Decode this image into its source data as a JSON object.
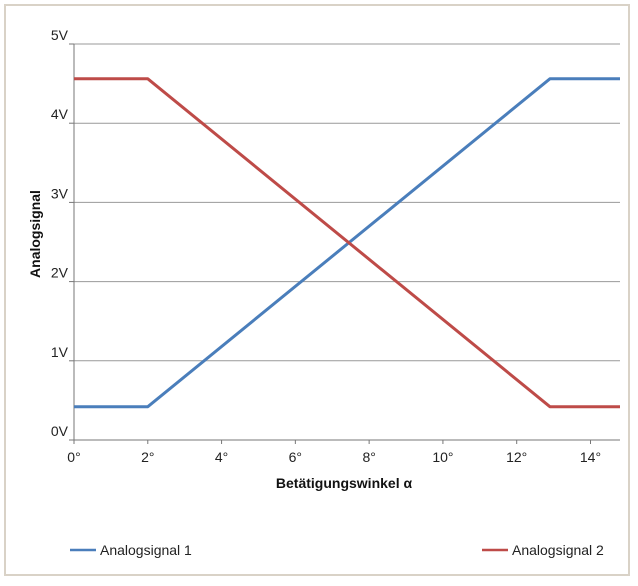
{
  "chart_data": {
    "type": "line",
    "xlabel": "Betätigungswinkel α",
    "ylabel": "Analogsignal",
    "xlim": [
      0,
      14.8
    ],
    "ylim": [
      0,
      5
    ],
    "xticks": [
      0,
      2,
      4,
      6,
      8,
      10,
      12,
      14
    ],
    "xtick_labels": [
      "0°",
      "2°",
      "4°",
      "6°",
      "8°",
      "10°",
      "12°",
      "14°"
    ],
    "yticks": [
      0,
      1,
      2,
      3,
      4,
      5
    ],
    "ytick_labels": [
      "0V",
      "1V",
      "2V",
      "3V",
      "4V",
      "5V"
    ],
    "grid": true,
    "legend_position": "bottom",
    "series": [
      {
        "name": "Analogsignal 1",
        "color": "#4a7ebb",
        "x": [
          0,
          2,
          12.9,
          14.8
        ],
        "y": [
          0.42,
          0.42,
          4.56,
          4.56
        ]
      },
      {
        "name": "Analogsignal 2",
        "color": "#be4b48",
        "x": [
          0,
          2,
          12.9,
          14.8
        ],
        "y": [
          4.56,
          4.56,
          0.42,
          0.42
        ]
      }
    ]
  }
}
